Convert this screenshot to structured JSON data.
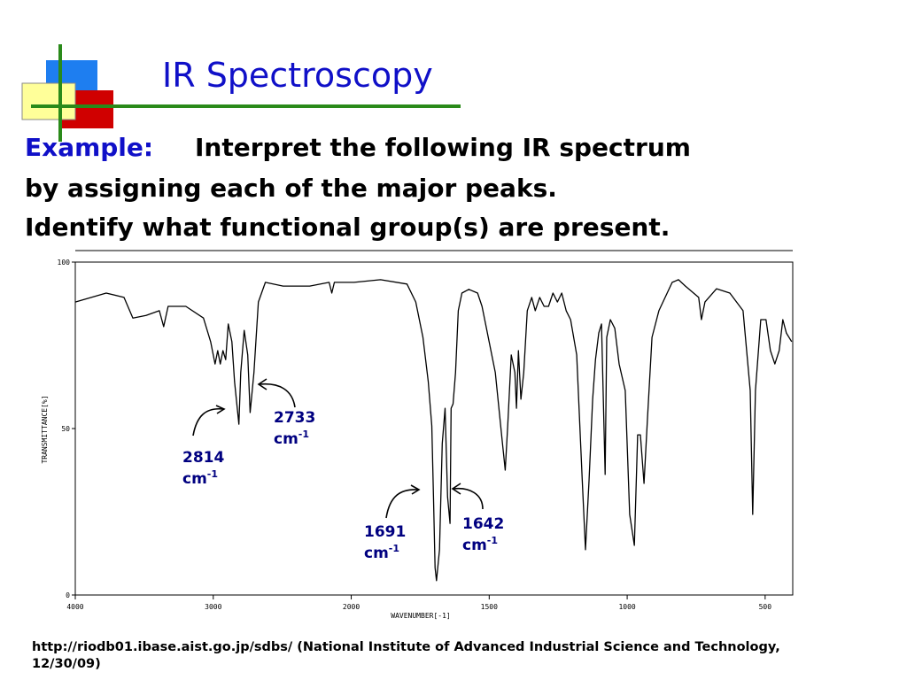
{
  "slide": {
    "title": "IR Spectroscopy",
    "example_label": "Example:",
    "body_lines": [
      "Interpret the following IR spectrum",
      "by assigning each of the major peaks.",
      "Identify what functional group(s) are present."
    ],
    "footer": "http://riodb01.ibase.aist.go.jp/sdbs/ (National Institute of Advanced Industrial Science and Technology, 12/30/09)"
  },
  "chart_data": {
    "type": "line",
    "x_label": "WAVENUMBER[-1]",
    "y_label": "TRANSMITTANCE[%]",
    "color": "#000000",
    "xlim": [
      4000,
      400
    ],
    "xticks": [
      4000,
      3000,
      2000,
      1500,
      1000,
      500
    ],
    "ylim": [
      0,
      100
    ],
    "yticks": [
      0,
      50,
      100
    ],
    "x": [
      4000,
      3776,
      3647,
      3583,
      3487,
      3391,
      3359,
      3327,
      3199,
      3071,
      3019,
      3006,
      2987,
      2968,
      2949,
      2930,
      2910,
      2891,
      2865,
      2846,
      2814,
      2801,
      2776,
      2750,
      2733,
      2705,
      2673,
      2622,
      2494,
      2301,
      2160,
      2141,
      2122,
      1990,
      1894,
      1798,
      1766,
      1740,
      1721,
      1708,
      1702,
      1696,
      1691,
      1680,
      1670,
      1660,
      1651,
      1642,
      1638,
      1631,
      1622,
      1612,
      1599,
      1574,
      1542,
      1526,
      1510,
      1478,
      1452,
      1442,
      1433,
      1420,
      1407,
      1401,
      1394,
      1385,
      1375,
      1362,
      1346,
      1333,
      1317,
      1301,
      1285,
      1269,
      1253,
      1237,
      1221,
      1205,
      1183,
      1163,
      1151,
      1138,
      1125,
      1115,
      1103,
      1093,
      1080,
      1074,
      1061,
      1045,
      1029,
      1007,
      991,
      974,
      962,
      952,
      939,
      926,
      910,
      885,
      837,
      814,
      789,
      741,
      731,
      718,
      676,
      628,
      580,
      554,
      545,
      535,
      516,
      497,
      481,
      465,
      449,
      436,
      423,
      404
    ],
    "values": [
      88.0,
      90.7,
      89.4,
      83.2,
      84.0,
      85.4,
      80.6,
      86.7,
      86.7,
      83.2,
      76.1,
      73.4,
      69.4,
      73.4,
      69.4,
      73.4,
      70.7,
      81.4,
      76.1,
      64.1,
      51.3,
      66.8,
      79.5,
      72.1,
      54.8,
      66.8,
      88.0,
      93.9,
      92.8,
      92.8,
      93.9,
      90.7,
      93.9,
      93.9,
      94.7,
      93.4,
      88.0,
      77.4,
      64.1,
      50.8,
      29.5,
      8.2,
      4.3,
      13.6,
      45.5,
      56.1,
      29.5,
      21.5,
      56.1,
      57.4,
      66.8,
      85.4,
      90.7,
      91.8,
      90.7,
      86.7,
      80.1,
      66.8,
      45.5,
      37.5,
      50.8,
      72.1,
      66.8,
      56.1,
      73.4,
      58.8,
      66.8,
      85.4,
      89.4,
      85.4,
      89.4,
      86.7,
      86.7,
      90.7,
      88.0,
      90.7,
      85.4,
      82.7,
      72.1,
      34.8,
      13.6,
      34.8,
      58.8,
      70.7,
      78.7,
      81.4,
      36.2,
      77.4,
      82.7,
      80.1,
      69.4,
      61.4,
      24.2,
      14.9,
      48.1,
      48.1,
      33.5,
      53.5,
      77.4,
      85.4,
      93.9,
      94.7,
      92.8,
      89.4,
      82.7,
      88.0,
      92.0,
      90.7,
      85.4,
      61.4,
      24.2,
      61.4,
      82.7,
      82.7,
      73.4,
      69.4,
      73.4,
      82.7,
      78.7,
      76.1
    ],
    "annotations": [
      {
        "value": "2814",
        "unit": "cm",
        "exponent": "-1"
      },
      {
        "value": "2733",
        "unit": "cm",
        "exponent": "-1"
      },
      {
        "value": "1691",
        "unit": "cm",
        "exponent": "-1"
      },
      {
        "value": "1642",
        "unit": "cm",
        "exponent": "-1"
      }
    ]
  }
}
